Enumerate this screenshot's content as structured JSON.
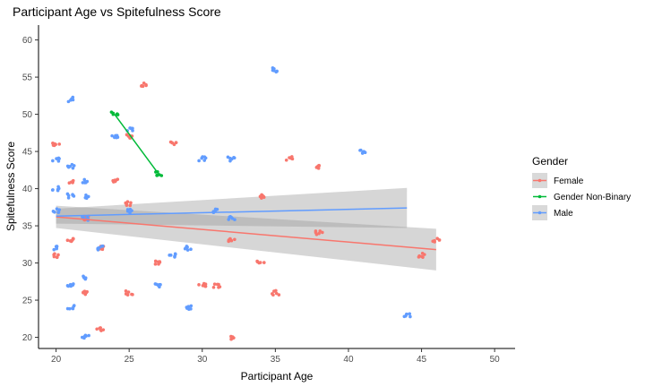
{
  "chart_data": {
    "type": "scatter",
    "title": "Participant Age vs Spitefulness Score",
    "xlabel": "Participant Age",
    "ylabel": "Spitefulness Score",
    "xlim": [
      18.8,
      51.4
    ],
    "ylim": [
      18.5,
      62
    ],
    "x_ticks": [
      20,
      25,
      30,
      35,
      40,
      45,
      50
    ],
    "y_ticks": [
      20,
      25,
      30,
      35,
      40,
      45,
      50,
      55,
      60
    ],
    "grid": false,
    "legend": {
      "title": "Gender",
      "position": "right"
    },
    "series": [
      {
        "name": "Female",
        "color": "#F8766D",
        "points": [
          [
            20,
            31
          ],
          [
            20,
            46
          ],
          [
            21,
            33
          ],
          [
            21,
            41
          ],
          [
            22,
            26
          ],
          [
            22,
            36
          ],
          [
            23,
            21
          ],
          [
            23,
            32
          ],
          [
            24,
            41
          ],
          [
            25,
            26
          ],
          [
            25,
            38
          ],
          [
            25,
            47
          ],
          [
            26,
            54
          ],
          [
            27,
            30
          ],
          [
            28,
            46
          ],
          [
            30,
            27
          ],
          [
            31,
            27
          ],
          [
            32,
            33
          ],
          [
            32,
            20
          ],
          [
            34,
            30
          ],
          [
            34,
            39
          ],
          [
            35,
            26
          ],
          [
            36,
            44
          ],
          [
            38,
            34
          ],
          [
            38,
            43
          ],
          [
            45,
            31
          ],
          [
            46,
            33
          ]
        ],
        "fit": {
          "x": [
            20,
            46
          ],
          "y": [
            36.2,
            31.8
          ],
          "ci_low": [
            34.7,
            29.0
          ],
          "ci_high": [
            37.7,
            34.6
          ]
        }
      },
      {
        "name": "Gender Non-Binary",
        "color": "#00BA38",
        "points": [
          [
            24,
            50
          ],
          [
            27,
            42
          ]
        ],
        "fit": {
          "x": [
            24,
            27
          ],
          "y": [
            50,
            42
          ]
        }
      },
      {
        "name": "Male",
        "color": "#619CFF",
        "points": [
          [
            20,
            32
          ],
          [
            20,
            37
          ],
          [
            20,
            40
          ],
          [
            20,
            44
          ],
          [
            21,
            24
          ],
          [
            21,
            27
          ],
          [
            21,
            39
          ],
          [
            21,
            43
          ],
          [
            21,
            52
          ],
          [
            22,
            20
          ],
          [
            22,
            28
          ],
          [
            22,
            36
          ],
          [
            22,
            39
          ],
          [
            22,
            41
          ],
          [
            23,
            32
          ],
          [
            24,
            47
          ],
          [
            25,
            37
          ],
          [
            25,
            48
          ],
          [
            27,
            27
          ],
          [
            28,
            31
          ],
          [
            29,
            24
          ],
          [
            29,
            32
          ],
          [
            30,
            44
          ],
          [
            31,
            37
          ],
          [
            32,
            36
          ],
          [
            32,
            44
          ],
          [
            35,
            56
          ],
          [
            41,
            45
          ],
          [
            44,
            23
          ]
        ],
        "fit": {
          "x": [
            20,
            44
          ],
          "y": [
            36.3,
            37.4
          ],
          "ci_low": [
            35.3,
            34.7
          ],
          "ci_high": [
            37.3,
            40.1
          ]
        }
      }
    ]
  }
}
